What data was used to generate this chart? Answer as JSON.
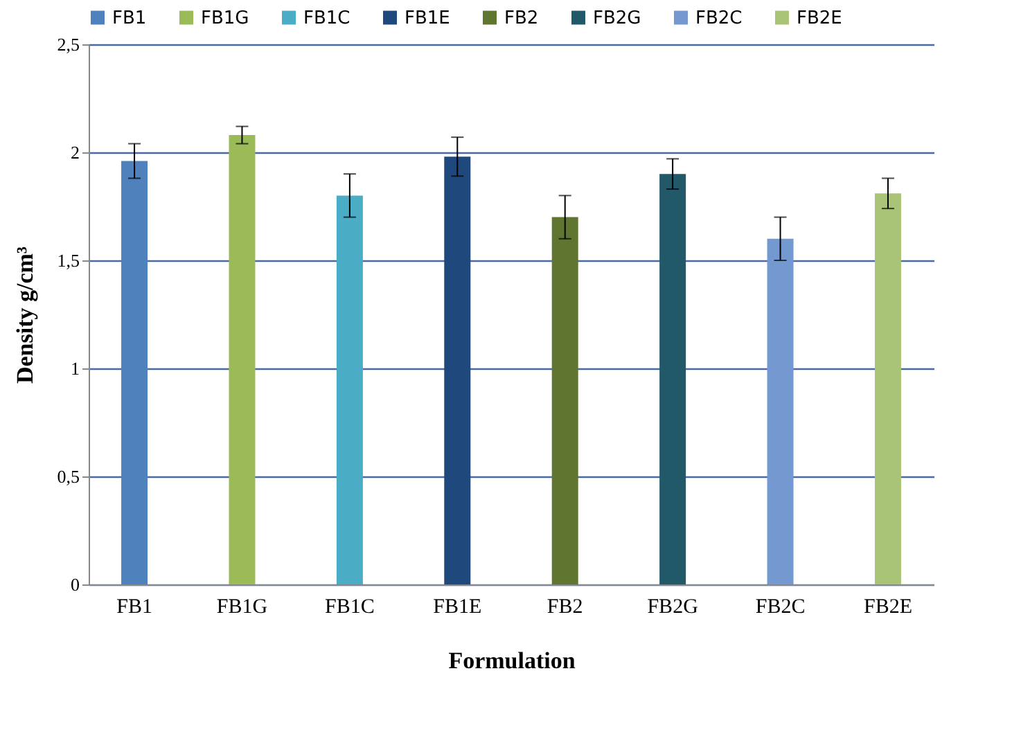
{
  "chart_data": {
    "type": "bar",
    "xlabel": "Formulation",
    "ylabel": "Density g/cm³",
    "categories": [
      "FB1",
      "FB1G",
      "FB1C",
      "FB1E",
      "FB2",
      "FB2G",
      "FB2C",
      "FB2E"
    ],
    "series": [
      {
        "name": "FB1",
        "color": "#4f81bd",
        "values": [
          1.96,
          null,
          null,
          null,
          null,
          null,
          null,
          null
        ],
        "errors": [
          0.08,
          null,
          null,
          null,
          null,
          null,
          null,
          null
        ]
      },
      {
        "name": "FB1G",
        "color": "#9bbb59",
        "values": [
          null,
          2.08,
          null,
          null,
          null,
          null,
          null,
          null
        ],
        "errors": [
          null,
          0.04,
          null,
          null,
          null,
          null,
          null,
          null
        ]
      },
      {
        "name": "FB1C",
        "color": "#4bacc6",
        "values": [
          null,
          null,
          1.8,
          null,
          null,
          null,
          null,
          null
        ],
        "errors": [
          null,
          null,
          0.1,
          null,
          null,
          null,
          null,
          null
        ]
      },
      {
        "name": "FB1E",
        "color": "#1f497d",
        "values": [
          null,
          null,
          null,
          1.98,
          null,
          null,
          null,
          null
        ],
        "errors": [
          null,
          null,
          null,
          0.09,
          null,
          null,
          null,
          null
        ]
      },
      {
        "name": "FB2",
        "color": "#5f7530",
        "values": [
          null,
          null,
          null,
          null,
          1.7,
          null,
          null,
          null
        ],
        "errors": [
          null,
          null,
          null,
          null,
          0.1,
          null,
          null,
          null
        ]
      },
      {
        "name": "FB2G",
        "color": "#215968",
        "values": [
          null,
          null,
          null,
          null,
          null,
          1.9,
          null,
          null
        ],
        "errors": [
          null,
          null,
          null,
          null,
          null,
          0.07,
          null,
          null
        ]
      },
      {
        "name": "FB2C",
        "color": "#7399d0",
        "values": [
          null,
          null,
          null,
          null,
          null,
          null,
          1.6,
          null
        ],
        "errors": [
          null,
          null,
          null,
          null,
          null,
          null,
          0.1,
          null
        ]
      },
      {
        "name": "FB2E",
        "color": "#a9c476",
        "values": [
          null,
          null,
          null,
          null,
          null,
          null,
          null,
          1.81
        ],
        "errors": [
          null,
          null,
          null,
          null,
          null,
          null,
          null,
          0.07
        ]
      }
    ],
    "ylim": [
      0,
      2.5
    ],
    "yticks": [
      0,
      {
        "value": 0.5,
        "label": "0,5"
      },
      1,
      {
        "value": 1.5,
        "label": "1,5"
      },
      2,
      {
        "value": 2.5,
        "label": "2,5"
      }
    ],
    "grid": "y",
    "legend": "top"
  }
}
